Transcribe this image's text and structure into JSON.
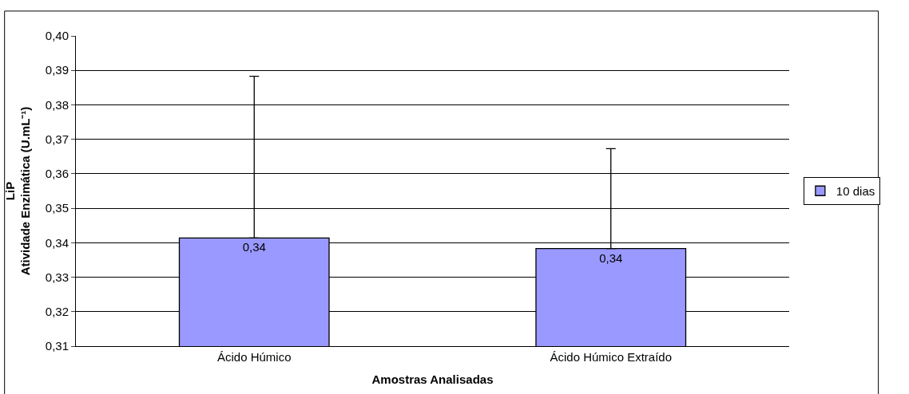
{
  "chart_data": {
    "type": "bar",
    "xlabel": "Amostras Analisadas",
    "ylabel": "LiP\nAtividade Enzimática (U.mL⁻¹)",
    "categories": [
      "Ácido Húmico",
      "Ácido Húmico Extraído"
    ],
    "series": [
      {
        "name": "10 dias",
        "color": "#9999ff",
        "values": [
          0.3414,
          0.3383
        ],
        "errors": [
          [
            0.3414,
            0.3883
          ],
          [
            0.3383,
            0.3673
          ]
        ],
        "value_labels": [
          "0,34",
          "0,34"
        ]
      }
    ],
    "ylim": [
      0.31,
      0.4
    ],
    "yticks": [
      {
        "value": 0.31,
        "label": "0,31"
      },
      {
        "value": 0.32,
        "label": "0,32"
      },
      {
        "value": 0.33,
        "label": "0,33"
      },
      {
        "value": 0.34,
        "label": "0,34"
      },
      {
        "value": 0.35,
        "label": "0,35"
      },
      {
        "value": 0.36,
        "label": "0,36"
      },
      {
        "value": 0.37,
        "label": "0,37"
      },
      {
        "value": 0.38,
        "label": "0,38"
      },
      {
        "value": 0.39,
        "label": "0,39"
      },
      {
        "value": 0.4,
        "label": "0,40"
      }
    ],
    "grid": "y",
    "legend": "right"
  }
}
